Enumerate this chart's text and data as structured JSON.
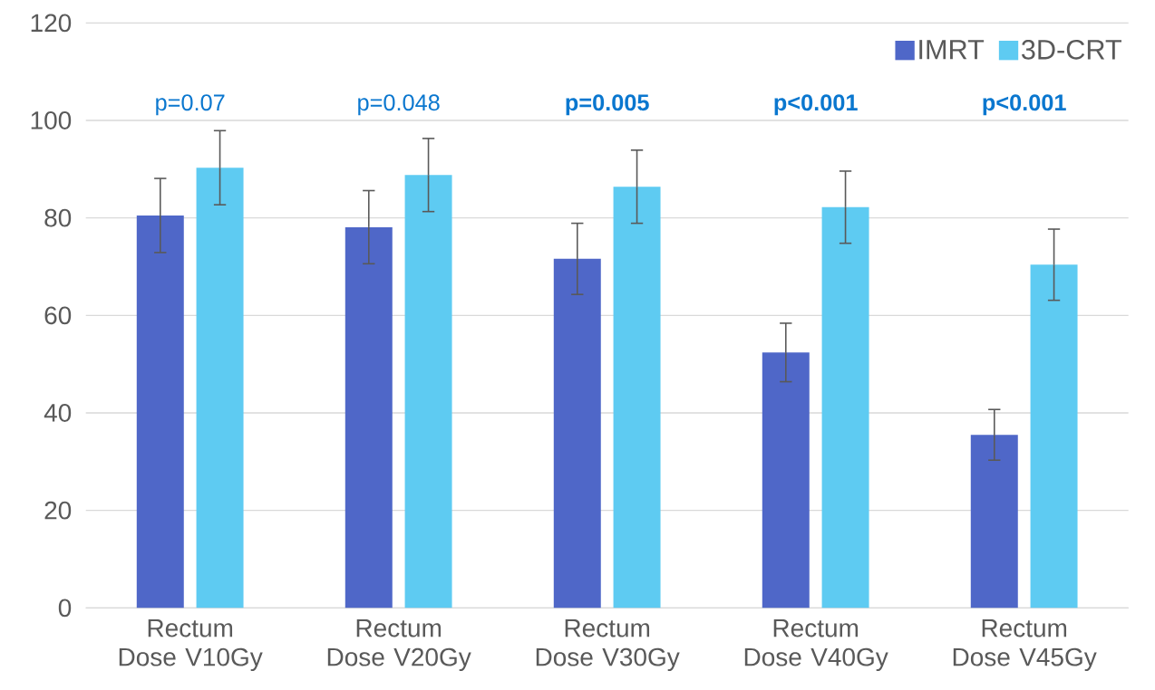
{
  "chart_data": {
    "type": "bar",
    "categories": [
      "Rectum Dose V10Gy",
      "Rectum Dose V20Gy",
      "Rectum Dose V30Gy",
      "Rectum Dose V40Gy",
      "Rectum Dose V45Gy"
    ],
    "series": [
      {
        "name": "IMRT",
        "color": "#4f67c8",
        "values": [
          80.5,
          78.1,
          71.6,
          52.4,
          35.5
        ],
        "errors": [
          7.6,
          7.5,
          7.3,
          6.0,
          5.2
        ]
      },
      {
        "name": "3D-CRT",
        "color": "#5ecbf2",
        "values": [
          90.3,
          88.8,
          86.4,
          82.2,
          70.4
        ],
        "errors": [
          7.6,
          7.5,
          7.5,
          7.4,
          7.3
        ]
      }
    ],
    "annotations": [
      "p=0.07",
      "p=0.048",
      "**p=0.005**",
      "**p<0.001**",
      "**p<0.001**"
    ],
    "ylim": [
      0,
      120
    ],
    "yticks": [
      0,
      20,
      40,
      60,
      80,
      100,
      120
    ],
    "grid": "y",
    "legend": "top right"
  }
}
